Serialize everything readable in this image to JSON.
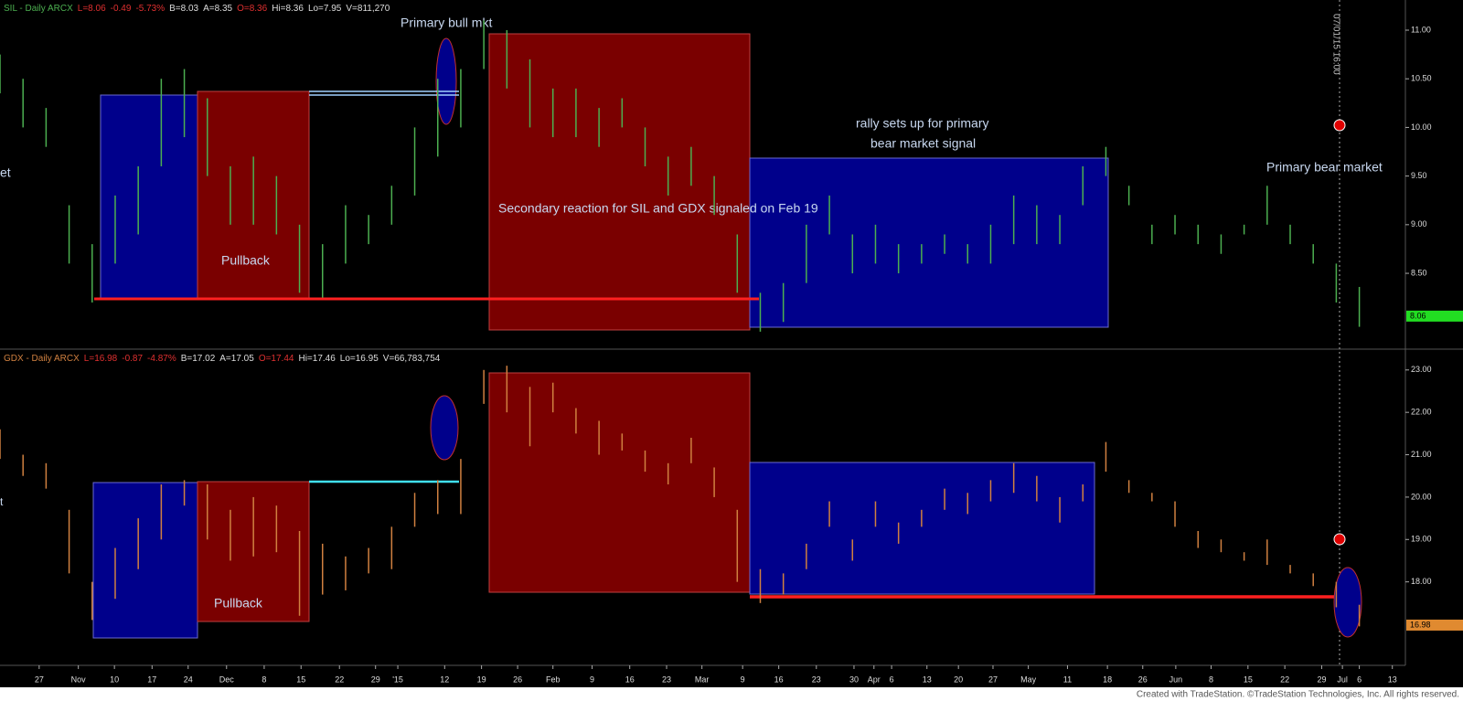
{
  "chart_data": [
    {
      "type": "ohlc",
      "header": [
        {
          "text": "SIL - Daily  ARCX",
          "color": "#4caf50"
        },
        {
          "text": "L=8.06",
          "color": "#e03030"
        },
        {
          "text": "-0.49",
          "color": "#e03030"
        },
        {
          "text": "-5.73%",
          "color": "#e03030"
        },
        {
          "text": "B=8.03",
          "color": "#dddddd"
        },
        {
          "text": "A=8.35",
          "color": "#dddddd"
        },
        {
          "text": "O=8.36",
          "color": "#e03030"
        },
        {
          "text": "Hi=8.36",
          "color": "#dddddd"
        },
        {
          "text": "Lo=7.95",
          "color": "#dddddd"
        },
        {
          "text": "V=811,270",
          "color": "#dddddd"
        }
      ],
      "annotations": [
        "Primary bull mkt",
        "Pullback",
        "Secondary reaction for SIL and GDX   signaled on Feb 19",
        "rally sets up for  primary",
        "bear market signal",
        "Primary bear market"
      ],
      "edge_text": "et",
      "cursor_label": "07/01/15 16:00",
      "xlim": [
        0,
        183
      ],
      "x": [
        0,
        3,
        6,
        9,
        12,
        15,
        18,
        21,
        24,
        27,
        30,
        33,
        36,
        39,
        42,
        45,
        48,
        51,
        54,
        57,
        60,
        63,
        66,
        69,
        72,
        75,
        78,
        81,
        84,
        87,
        90,
        93,
        96,
        99,
        102,
        105,
        108,
        111,
        114,
        117,
        120,
        123,
        126,
        129,
        132,
        135,
        138,
        141,
        144,
        147,
        150,
        153,
        156,
        159,
        162,
        165,
        168,
        171,
        174,
        177
      ],
      "series": [
        {
          "color": "#4caf50",
          "high": [
            10.75,
            10.5,
            10.2,
            9.2,
            8.8,
            9.3,
            9.6,
            10.5,
            10.6,
            10.3,
            9.6,
            9.7,
            9.5,
            9.0,
            8.8,
            9.2,
            9.1,
            9.4,
            10.0,
            10.5,
            10.6,
            11.1,
            11.0,
            10.7,
            10.4,
            10.4,
            10.2,
            10.3,
            10.0,
            9.7,
            9.8,
            9.5,
            8.9,
            8.3,
            8.4,
            9.0,
            9.3,
            8.9,
            9.0,
            8.8,
            8.8,
            8.9,
            8.8,
            9.0,
            9.3,
            9.2,
            9.1,
            9.6,
            9.8,
            9.4,
            9.0,
            9.1,
            9.0,
            8.9,
            9.0,
            9.4,
            9.0,
            8.8,
            8.6,
            8.36
          ],
          "low": [
            10.35,
            10.0,
            9.8,
            8.6,
            8.2,
            8.6,
            8.9,
            9.6,
            9.9,
            9.5,
            9.0,
            9.0,
            8.9,
            8.3,
            8.25,
            8.6,
            8.8,
            9.0,
            9.3,
            9.7,
            10.0,
            10.6,
            10.4,
            10.0,
            9.9,
            9.9,
            9.8,
            10.0,
            9.6,
            9.3,
            9.4,
            9.1,
            8.3,
            7.9,
            8.0,
            8.4,
            8.9,
            8.5,
            8.6,
            8.5,
            8.6,
            8.7,
            8.6,
            8.6,
            8.8,
            8.8,
            8.8,
            9.2,
            9.5,
            9.2,
            8.8,
            8.9,
            8.8,
            8.7,
            8.9,
            9.0,
            8.8,
            8.6,
            8.2,
            7.95
          ]
        }
      ],
      "ylim": [
        7.73,
        11.31
      ],
      "yticks": [
        {
          "value": 8.5,
          "label": "8.50"
        },
        {
          "value": 9,
          "label": "9.00"
        },
        {
          "value": 9.5,
          "label": "9.50"
        },
        {
          "value": 10,
          "label": "10.00"
        },
        {
          "value": 10.5,
          "label": "10.50"
        },
        {
          "value": 11,
          "label": "11.00"
        }
      ],
      "last": 8.06,
      "last_color": "#22dd22"
    },
    {
      "type": "ohlc",
      "header": [
        {
          "text": "GDX - Daily  ARCX",
          "color": "#d08040"
        },
        {
          "text": "L=16.98",
          "color": "#e03030"
        },
        {
          "text": "-0.87",
          "color": "#e03030"
        },
        {
          "text": "-4.87%",
          "color": "#e03030"
        },
        {
          "text": "B=17.02",
          "color": "#dddddd"
        },
        {
          "text": "A=17.05",
          "color": "#dddddd"
        },
        {
          "text": "O=17.44",
          "color": "#e03030"
        },
        {
          "text": "Hi=17.46",
          "color": "#dddddd"
        },
        {
          "text": "Lo=16.95",
          "color": "#dddddd"
        },
        {
          "text": "V=66,783,754",
          "color": "#dddddd"
        }
      ],
      "annotations": [
        "Pullback"
      ],
      "edge_text": "t",
      "xlim": [
        0,
        183
      ],
      "x": [
        0,
        3,
        6,
        9,
        12,
        15,
        18,
        21,
        24,
        27,
        30,
        33,
        36,
        39,
        42,
        45,
        48,
        51,
        54,
        57,
        60,
        63,
        66,
        69,
        72,
        75,
        78,
        81,
        84,
        87,
        90,
        93,
        96,
        99,
        102,
        105,
        108,
        111,
        114,
        117,
        120,
        123,
        126,
        129,
        132,
        135,
        138,
        141,
        144,
        147,
        150,
        153,
        156,
        159,
        162,
        165,
        168,
        171,
        174,
        177
      ],
      "series": [
        {
          "color": "#d08040",
          "high": [
            21.6,
            21.0,
            20.8,
            19.7,
            18.0,
            18.8,
            19.5,
            20.3,
            20.4,
            20.3,
            19.7,
            20.0,
            19.8,
            19.2,
            18.9,
            18.6,
            18.8,
            19.3,
            20.1,
            20.4,
            20.9,
            23.0,
            23.1,
            22.6,
            22.7,
            22.1,
            21.8,
            21.5,
            21.1,
            20.8,
            21.4,
            20.7,
            19.7,
            18.3,
            18.2,
            18.9,
            19.9,
            19.0,
            19.9,
            19.4,
            19.7,
            20.2,
            20.1,
            20.4,
            20.8,
            20.5,
            20.0,
            20.3,
            21.3,
            20.4,
            20.1,
            19.9,
            19.2,
            19.0,
            18.7,
            19.0,
            18.4,
            18.2,
            18.0,
            17.46
          ],
          "low": [
            20.9,
            20.5,
            20.2,
            18.2,
            17.1,
            17.6,
            18.3,
            19.0,
            19.8,
            19.0,
            18.5,
            18.6,
            18.7,
            17.2,
            17.7,
            17.8,
            18.2,
            18.3,
            19.3,
            19.6,
            19.6,
            22.2,
            22.0,
            21.2,
            22.0,
            21.5,
            21.0,
            21.1,
            20.6,
            20.3,
            20.8,
            20.0,
            18.0,
            17.5,
            17.7,
            18.3,
            19.3,
            18.5,
            19.3,
            18.9,
            19.3,
            19.7,
            19.6,
            19.9,
            20.1,
            19.9,
            19.4,
            19.9,
            20.6,
            20.1,
            19.9,
            19.3,
            18.8,
            18.7,
            18.5,
            18.4,
            18.2,
            17.9,
            17.4,
            16.95
          ]
        }
      ],
      "ylim": [
        16.03,
        23.47
      ],
      "yticks": [
        {
          "value": 18,
          "label": "18.00"
        },
        {
          "value": 19,
          "label": "19.00"
        },
        {
          "value": 20,
          "label": "20.00"
        },
        {
          "value": 21,
          "label": "21.00"
        },
        {
          "value": 22,
          "label": "22.00"
        },
        {
          "value": 23,
          "label": "23.00"
        }
      ],
      "last": 16.98,
      "last_color": "#e08a30",
      "xticks": [
        {
          "value": 5.1,
          "label": "27"
        },
        {
          "value": 10.2,
          "label": "Nov"
        },
        {
          "value": 14.9,
          "label": "10"
        },
        {
          "value": 19.8,
          "label": "17"
        },
        {
          "value": 24.5,
          "label": "24"
        },
        {
          "value": 29.5,
          "label": "Dec"
        },
        {
          "value": 34.4,
          "label": "8"
        },
        {
          "value": 39.2,
          "label": "15"
        },
        {
          "value": 44.2,
          "label": "22"
        },
        {
          "value": 48.9,
          "label": "29"
        },
        {
          "value": 51.8,
          "label": "'15"
        },
        {
          "value": 57.9,
          "label": "12"
        },
        {
          "value": 62.7,
          "label": "19"
        },
        {
          "value": 67.4,
          "label": "26"
        },
        {
          "value": 72,
          "label": "Feb"
        },
        {
          "value": 77.1,
          "label": "9"
        },
        {
          "value": 82,
          "label": "16"
        },
        {
          "value": 86.8,
          "label": "23"
        },
        {
          "value": 91.4,
          "label": "Mar"
        },
        {
          "value": 96.7,
          "label": "9"
        },
        {
          "value": 101.4,
          "label": "16"
        },
        {
          "value": 106.3,
          "label": "23"
        },
        {
          "value": 111.2,
          "label": "30"
        },
        {
          "value": 113.8,
          "label": "Apr"
        },
        {
          "value": 116.1,
          "label": "6"
        },
        {
          "value": 120.7,
          "label": "13"
        },
        {
          "value": 124.8,
          "label": "20"
        },
        {
          "value": 129.3,
          "label": "27"
        },
        {
          "value": 133.9,
          "label": "May"
        },
        {
          "value": 139,
          "label": "11"
        },
        {
          "value": 144.2,
          "label": "18"
        },
        {
          "value": 148.8,
          "label": "26"
        },
        {
          "value": 153.1,
          "label": "Jun"
        },
        {
          "value": 157.7,
          "label": "8"
        },
        {
          "value": 162.5,
          "label": "15"
        },
        {
          "value": 167.3,
          "label": "22"
        },
        {
          "value": 172.1,
          "label": "29"
        },
        {
          "value": 174.8,
          "label": "Jul"
        },
        {
          "value": 177,
          "label": "6"
        },
        {
          "value": 181.3,
          "label": "13"
        }
      ]
    }
  ],
  "footer": "Created with TradeStation. ©TradeStation Technologies, Inc. All rights reserved."
}
